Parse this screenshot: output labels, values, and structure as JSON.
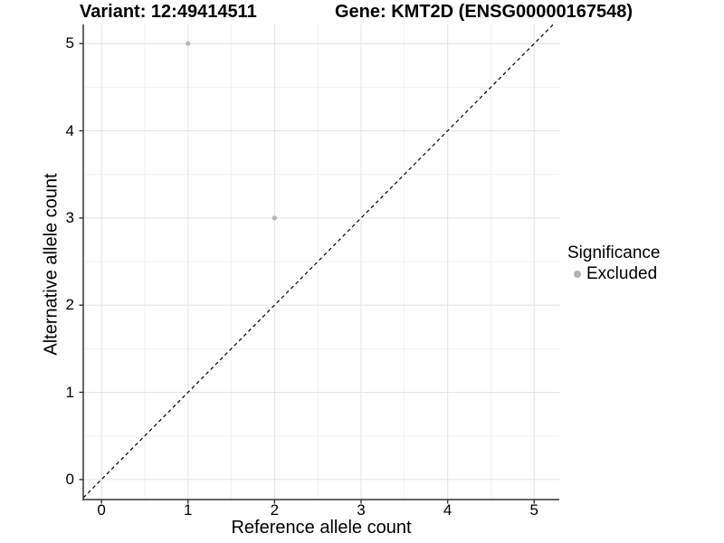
{
  "chart_data": {
    "type": "scatter",
    "title_left": "Variant: 12:49414511",
    "title_right": "Gene: KMT2D (ENSG00000167548)",
    "xlabel": "Reference allele count",
    "ylabel": "Alternative allele count",
    "xticks": [
      "0",
      "1",
      "2",
      "3",
      "4",
      "5"
    ],
    "yticks": [
      "0",
      "1",
      "2",
      "3",
      "4",
      "5"
    ],
    "xtick_values": [
      0,
      1,
      2,
      3,
      4,
      5
    ],
    "ytick_values": [
      0,
      1,
      2,
      3,
      4,
      5
    ],
    "x_minor": [
      0.5,
      1.5,
      2.5,
      3.5,
      4.5
    ],
    "y_minor": [
      0.5,
      1.5,
      2.5,
      3.5,
      4.5
    ],
    "xlim": [
      -0.21,
      5.29
    ],
    "ylim": [
      -0.23,
      5.22
    ],
    "grid": true,
    "identity_line": {
      "equation": "y = x",
      "style": "dashed",
      "color": "#000000"
    },
    "series": [
      {
        "name": "Excluded",
        "color": "#b3b3b3",
        "points": [
          {
            "x": 1,
            "y": 5
          },
          {
            "x": 2,
            "y": 3
          }
        ]
      }
    ],
    "legend": {
      "title": "Significance",
      "position": "right",
      "items": [
        {
          "label": "Excluded",
          "color": "#b3b3b3"
        }
      ]
    },
    "colors": {
      "background": "#ffffff",
      "grid_major": "#e6e6e6",
      "grid_minor": "#f2f2f2",
      "axis_line": "#333333",
      "text": "#000000"
    }
  }
}
